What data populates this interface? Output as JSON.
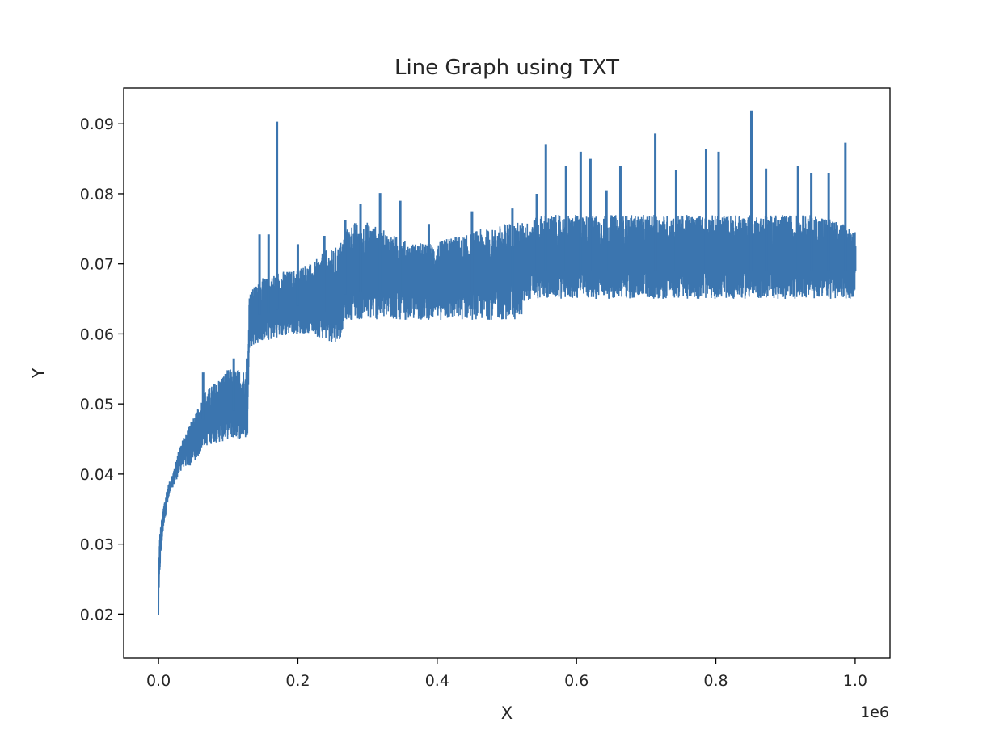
{
  "chart_data": {
    "type": "line",
    "title": "Line Graph using TXT",
    "xlabel": "X",
    "ylabel": "Y",
    "x_offset_label": "1e6",
    "xlim": [
      -50000,
      1050000
    ],
    "ylim": [
      0.0137,
      0.0951
    ],
    "x_ticks": [
      0.0,
      200000,
      400000,
      600000,
      800000,
      1000000
    ],
    "x_tick_labels": [
      "0.0",
      "0.2",
      "0.4",
      "0.6",
      "0.8",
      "1.0"
    ],
    "y_ticks": [
      0.02,
      0.03,
      0.04,
      0.05,
      0.06,
      0.07,
      0.08,
      0.09
    ],
    "y_tick_labels": [
      "0.02",
      "0.03",
      "0.04",
      "0.05",
      "0.06",
      "0.07",
      "0.08",
      "0.09"
    ],
    "grid": false,
    "legend": "none",
    "line_color": "#3b75af",
    "series": [
      {
        "x": [
          0,
          2000,
          5000,
          8000,
          12000,
          16000,
          20000,
          25000,
          30000,
          35000,
          40000,
          45000,
          50000,
          55000,
          60000,
          65000,
          70000,
          80000,
          90000,
          100000,
          110000,
          120000,
          128000,
          130000,
          140000,
          150000,
          160000,
          170000,
          180000,
          190000,
          200000,
          210000,
          220000,
          230000,
          240000,
          250000,
          260000,
          265000,
          270000,
          280000,
          300000,
          320000,
          340000,
          360000,
          380000,
          400000,
          420000,
          440000,
          460000,
          480000,
          500000,
          520000,
          525000,
          530000,
          550000,
          600000,
          650000,
          700000,
          750000,
          800000,
          850000,
          900000,
          950000,
          1000000
        ],
        "y_low": [
          0.0178,
          0.026,
          0.03,
          0.033,
          0.035,
          0.037,
          0.038,
          0.039,
          0.04,
          0.041,
          0.041,
          0.041,
          0.042,
          0.042,
          0.043,
          0.044,
          0.044,
          0.0445,
          0.0445,
          0.045,
          0.045,
          0.045,
          0.045,
          0.058,
          0.0585,
          0.059,
          0.059,
          0.0595,
          0.0595,
          0.06,
          0.06,
          0.06,
          0.06,
          0.0595,
          0.059,
          0.0588,
          0.059,
          0.061,
          0.062,
          0.062,
          0.062,
          0.062,
          0.062,
          0.062,
          0.062,
          0.062,
          0.062,
          0.062,
          0.062,
          0.062,
          0.062,
          0.062,
          0.064,
          0.0648,
          0.065,
          0.065,
          0.065,
          0.065,
          0.065,
          0.065,
          0.065,
          0.065,
          0.065,
          0.065
        ],
        "y_high": [
          0.028,
          0.032,
          0.034,
          0.036,
          0.038,
          0.039,
          0.04,
          0.042,
          0.044,
          0.045,
          0.046,
          0.048,
          0.048,
          0.049,
          0.05,
          0.052,
          0.052,
          0.053,
          0.054,
          0.055,
          0.055,
          0.055,
          0.055,
          0.066,
          0.067,
          0.068,
          0.068,
          0.069,
          0.069,
          0.069,
          0.0695,
          0.07,
          0.07,
          0.071,
          0.072,
          0.072,
          0.073,
          0.074,
          0.075,
          0.076,
          0.076,
          0.075,
          0.074,
          0.073,
          0.073,
          0.073,
          0.074,
          0.074,
          0.075,
          0.075,
          0.076,
          0.076,
          0.076,
          0.076,
          0.077,
          0.077,
          0.077,
          0.077,
          0.077,
          0.077,
          0.077,
          0.077,
          0.077,
          0.075
        ],
        "spikes": [
          [
            170000,
            0.0903
          ],
          [
            127000,
            0.0565
          ],
          [
            108000,
            0.0565
          ],
          [
            64000,
            0.0545
          ],
          [
            145000,
            0.0742
          ],
          [
            158000,
            0.0742
          ],
          [
            200000,
            0.0728
          ],
          [
            238000,
            0.074
          ],
          [
            268000,
            0.0762
          ],
          [
            290000,
            0.0785
          ],
          [
            318000,
            0.0801
          ],
          [
            347000,
            0.079
          ],
          [
            388000,
            0.0757
          ],
          [
            450000,
            0.0775
          ],
          [
            508000,
            0.0779
          ],
          [
            543000,
            0.08
          ],
          [
            556000,
            0.0871
          ],
          [
            585000,
            0.084
          ],
          [
            606000,
            0.086
          ],
          [
            620000,
            0.085
          ],
          [
            643000,
            0.0805
          ],
          [
            663000,
            0.084
          ],
          [
            713000,
            0.0886
          ],
          [
            743000,
            0.0834
          ],
          [
            786000,
            0.0864
          ],
          [
            804000,
            0.086
          ],
          [
            851000,
            0.0919
          ],
          [
            872000,
            0.0836
          ],
          [
            918000,
            0.084
          ],
          [
            937000,
            0.083
          ],
          [
            962000,
            0.083
          ],
          [
            986000,
            0.0873
          ],
          [
            1000000,
            0.0725
          ]
        ]
      }
    ]
  }
}
